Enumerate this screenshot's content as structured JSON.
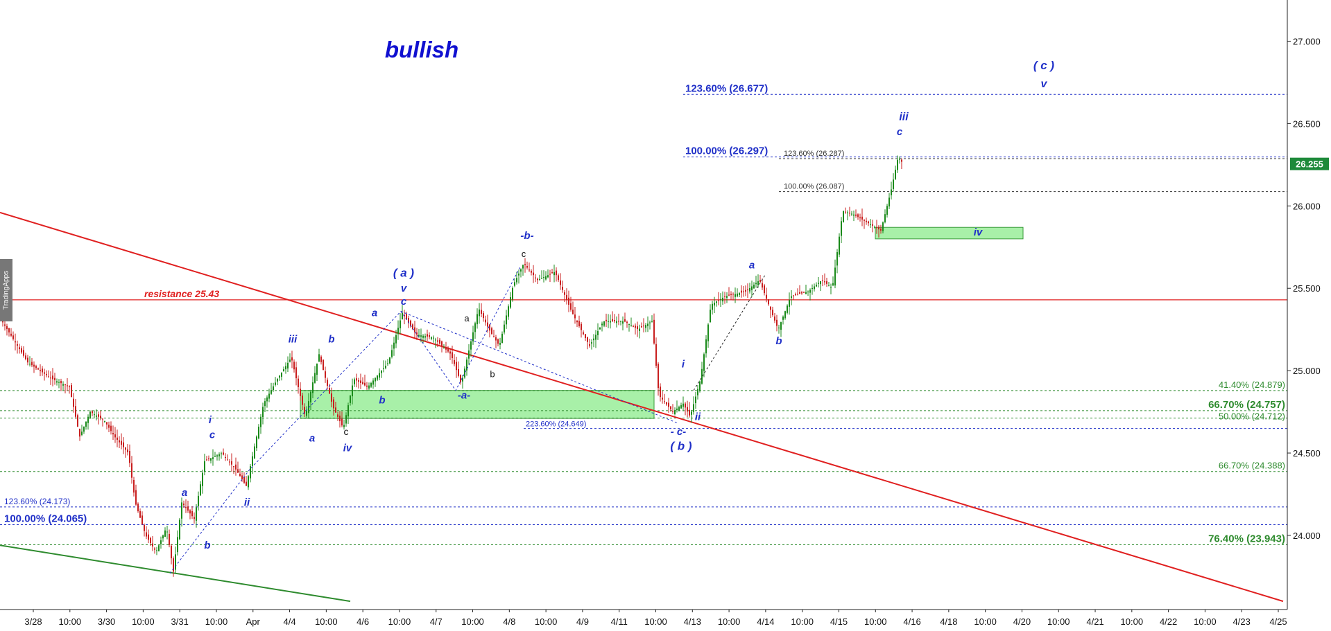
{
  "chart_data": {
    "type": "candlestick",
    "title": "bullish",
    "ylim": [
      23.55,
      27.25
    ],
    "y_ticks": [
      "27.000",
      "26.500",
      "26.000",
      "25.500",
      "25.000",
      "24.500",
      "24.000"
    ],
    "y_tick_values": [
      27.0,
      26.5,
      26.0,
      25.5,
      25.0,
      24.5,
      24.0
    ],
    "x_tick_labels": [
      "3/28",
      "10:00",
      "3/30",
      "10:00",
      "3/31",
      "10:00",
      "Apr",
      "4/4",
      "10:00",
      "4/6",
      "10:00",
      "4/7",
      "10:00",
      "4/8",
      "10:00",
      "4/9",
      "4/11",
      "10:00",
      "4/13",
      "10:00",
      "4/14",
      "10:00",
      "4/15",
      "10:00",
      "4/16",
      "4/18",
      "10:00",
      "4/20",
      "10:00",
      "4/21",
      "10:00",
      "4/22",
      "10:00",
      "4/23",
      "4/25"
    ],
    "last_price": {
      "label": "26.255",
      "value": 26.255
    },
    "price_path": [
      [
        0,
        25.32
      ],
      [
        40,
        25.05
      ],
      [
        75,
        24.95
      ],
      [
        100,
        24.9
      ],
      [
        115,
        24.6
      ],
      [
        130,
        24.75
      ],
      [
        150,
        24.7
      ],
      [
        165,
        24.6
      ],
      [
        185,
        24.5
      ],
      [
        195,
        24.2
      ],
      [
        210,
        24.0
      ],
      [
        225,
        23.9
      ],
      [
        240,
        24.05
      ],
      [
        250,
        23.78
      ],
      [
        262,
        24.2
      ],
      [
        280,
        24.1
      ],
      [
        295,
        24.45
      ],
      [
        320,
        24.5
      ],
      [
        340,
        24.4
      ],
      [
        355,
        24.3
      ],
      [
        380,
        24.8
      ],
      [
        400,
        24.95
      ],
      [
        420,
        25.08
      ],
      [
        440,
        24.72
      ],
      [
        460,
        25.1
      ],
      [
        480,
        24.78
      ],
      [
        495,
        24.65
      ],
      [
        510,
        24.95
      ],
      [
        530,
        24.9
      ],
      [
        560,
        25.05
      ],
      [
        580,
        25.35
      ],
      [
        600,
        25.22
      ],
      [
        625,
        25.2
      ],
      [
        650,
        25.1
      ],
      [
        665,
        24.92
      ],
      [
        690,
        25.38
      ],
      [
        705,
        25.25
      ],
      [
        720,
        25.15
      ],
      [
        740,
        25.52
      ],
      [
        755,
        25.65
      ],
      [
        775,
        25.55
      ],
      [
        800,
        25.6
      ],
      [
        825,
        25.35
      ],
      [
        850,
        25.15
      ],
      [
        870,
        25.3
      ],
      [
        900,
        25.3
      ],
      [
        920,
        25.25
      ],
      [
        940,
        25.3
      ],
      [
        950,
        24.85
      ],
      [
        970,
        24.75
      ],
      [
        985,
        24.8
      ],
      [
        995,
        24.72
      ],
      [
        1010,
        24.95
      ],
      [
        1025,
        25.4
      ],
      [
        1045,
        25.45
      ],
      [
        1075,
        25.48
      ],
      [
        1095,
        25.55
      ],
      [
        1110,
        25.38
      ],
      [
        1122,
        25.25
      ],
      [
        1140,
        25.45
      ],
      [
        1165,
        25.48
      ],
      [
        1185,
        25.55
      ],
      [
        1200,
        25.5
      ],
      [
        1215,
        25.97
      ],
      [
        1230,
        25.95
      ],
      [
        1250,
        25.9
      ],
      [
        1270,
        25.85
      ],
      [
        1285,
        26.1
      ],
      [
        1295,
        26.3
      ],
      [
        1302,
        26.255
      ]
    ],
    "horizontal_lines": [
      {
        "label": "123.60% (26.677)",
        "value": 26.677,
        "color": "#2030c8",
        "style": "dotted",
        "label_side": "left-mid"
      },
      {
        "label": "100.00% (26.297)",
        "value": 26.297,
        "color": "#2030c8",
        "style": "dotted",
        "label_side": "left-mid"
      },
      {
        "label": "123.60% (26.287)",
        "value": 26.287,
        "color": "#333333",
        "style": "dotted",
        "label_side": "mid"
      },
      {
        "label": "100.00% (26.087)",
        "value": 26.087,
        "color": "#333333",
        "style": "dotted",
        "label_side": "mid"
      },
      {
        "label": "resistance 25.43",
        "value": 25.43,
        "color": "#e02020",
        "style": "solid",
        "label_side": "left"
      },
      {
        "label": "41.40% (24.879)",
        "value": 24.879,
        "color": "#2e8b2e",
        "style": "dotted",
        "label_side": "right"
      },
      {
        "label": "66.70% (24.757)",
        "value": 24.757,
        "color": "#2e8b2e",
        "style": "dotted",
        "label_side": "right-bold"
      },
      {
        "label": "50.00% (24.712)",
        "value": 24.712,
        "color": "#2e8b2e",
        "style": "dotted",
        "label_side": "right"
      },
      {
        "label": "223.60% (24.649)",
        "value": 24.649,
        "color": "#2030c8",
        "style": "dotted",
        "label_side": "mid"
      },
      {
        "label": "66.70% (24.388)",
        "value": 24.388,
        "color": "#2e8b2e",
        "style": "dotted",
        "label_side": "right"
      },
      {
        "label": "123.60% (24.173)",
        "value": 24.173,
        "color": "#2030c8",
        "style": "dotted",
        "label_side": "left"
      },
      {
        "label": "100.00% (24.065)",
        "value": 24.065,
        "color": "#2030c8",
        "style": "dotted",
        "label_side": "left-bold"
      },
      {
        "label": "76.40% (23.943)",
        "value": 23.943,
        "color": "#2e8b2e",
        "style": "dotted",
        "label_side": "right-bold"
      }
    ],
    "trend_lines": [
      {
        "name": "red-downtrend",
        "color": "#e02020",
        "points": [
          [
            0,
            25.96
          ],
          [
            1850,
            23.6
          ]
        ]
      },
      {
        "name": "green-support",
        "color": "#2e8b2e",
        "points": [
          [
            0,
            23.94
          ],
          [
            505,
            23.6
          ]
        ]
      }
    ],
    "zones": [
      {
        "name": "support-zone-left",
        "x": [
          433,
          943
        ],
        "y": [
          24.88,
          24.71
        ]
      },
      {
        "name": "target-zone-iv",
        "x": [
          1262,
          1475
        ],
        "y": [
          25.87,
          25.8
        ]
      }
    ],
    "wave_labels": [
      {
        "text": "( c )",
        "x": 1505,
        "y": 26.83,
        "color": "#2030c8",
        "size": 17
      },
      {
        "text": "v",
        "x": 1505,
        "y": 26.72,
        "color": "#2030c8",
        "size": 16
      },
      {
        "text": "iii",
        "x": 1303,
        "y": 26.52,
        "color": "#2030c8",
        "size": 16
      },
      {
        "text": "c",
        "x": 1297,
        "y": 26.43,
        "color": "#2030c8",
        "size": 15
      },
      {
        "text": "iv",
        "x": 1410,
        "y": 25.82,
        "color": "#2030c8",
        "size": 15
      },
      {
        "text": "-b-",
        "x": 760,
        "y": 25.8,
        "color": "#2030c8",
        "size": 15
      },
      {
        "text": "c",
        "x": 755,
        "y": 25.69,
        "color": "#111111",
        "size": 13
      },
      {
        "text": "( a )",
        "x": 582,
        "y": 25.57,
        "color": "#2030c8",
        "size": 17
      },
      {
        "text": "v",
        "x": 582,
        "y": 25.48,
        "color": "#2030c8",
        "size": 15
      },
      {
        "text": "c",
        "x": 582,
        "y": 25.4,
        "color": "#2030c8",
        "size": 15
      },
      {
        "text": "a",
        "x": 540,
        "y": 25.33,
        "color": "#2030c8",
        "size": 15
      },
      {
        "text": "a",
        "x": 673,
        "y": 25.3,
        "color": "#111111",
        "size": 13
      },
      {
        "text": "b",
        "x": 710,
        "y": 24.96,
        "color": "#111111",
        "size": 13
      },
      {
        "text": "-a-",
        "x": 669,
        "y": 24.83,
        "color": "#2030c8",
        "size": 15
      },
      {
        "text": "iii",
        "x": 422,
        "y": 25.17,
        "color": "#2030c8",
        "size": 15
      },
      {
        "text": "b",
        "x": 478,
        "y": 25.17,
        "color": "#2030c8",
        "size": 15
      },
      {
        "text": "b",
        "x": 551,
        "y": 24.8,
        "color": "#2030c8",
        "size": 15
      },
      {
        "text": "a",
        "x": 450,
        "y": 24.57,
        "color": "#2030c8",
        "size": 15
      },
      {
        "text": "c",
        "x": 499,
        "y": 24.61,
        "color": "#111111",
        "size": 14
      },
      {
        "text": "iv",
        "x": 501,
        "y": 24.51,
        "color": "#2030c8",
        "size": 15
      },
      {
        "text": "i",
        "x": 303,
        "y": 24.68,
        "color": "#2030c8",
        "size": 15
      },
      {
        "text": "c",
        "x": 306,
        "y": 24.59,
        "color": "#2030c8",
        "size": 15
      },
      {
        "text": "ii",
        "x": 356,
        "y": 24.18,
        "color": "#2030c8",
        "size": 15
      },
      {
        "text": "a",
        "x": 266,
        "y": 24.24,
        "color": "#2030c8",
        "size": 15
      },
      {
        "text": "b",
        "x": 299,
        "y": 23.92,
        "color": "#2030c8",
        "size": 15
      },
      {
        "text": "i",
        "x": 985,
        "y": 25.02,
        "color": "#2030c8",
        "size": 15
      },
      {
        "text": "ii",
        "x": 1006,
        "y": 24.7,
        "color": "#2030c8",
        "size": 15
      },
      {
        "text": "- c-",
        "x": 978,
        "y": 24.61,
        "color": "#2030c8",
        "size": 15
      },
      {
        "text": "( b )",
        "x": 982,
        "y": 24.52,
        "color": "#2030c8",
        "size": 17
      },
      {
        "text": "a",
        "x": 1084,
        "y": 25.62,
        "color": "#2030c8",
        "size": 15
      },
      {
        "text": "b",
        "x": 1123,
        "y": 25.16,
        "color": "#2030c8",
        "size": 15
      }
    ],
    "wave_lines": [
      {
        "points": [
          [
            245,
            23.77
          ],
          [
            360,
            24.4
          ],
          [
            578,
            25.36
          ]
        ]
      },
      {
        "points": [
          [
            578,
            25.36
          ],
          [
            657,
            24.88
          ],
          [
            750,
            25.63
          ]
        ]
      },
      {
        "points": [
          [
            578,
            25.36
          ],
          [
            978,
            24.68
          ]
        ]
      },
      {
        "points": [
          [
            1000,
            24.88
          ],
          [
            1103,
            25.58
          ]
        ]
      }
    ]
  }
}
